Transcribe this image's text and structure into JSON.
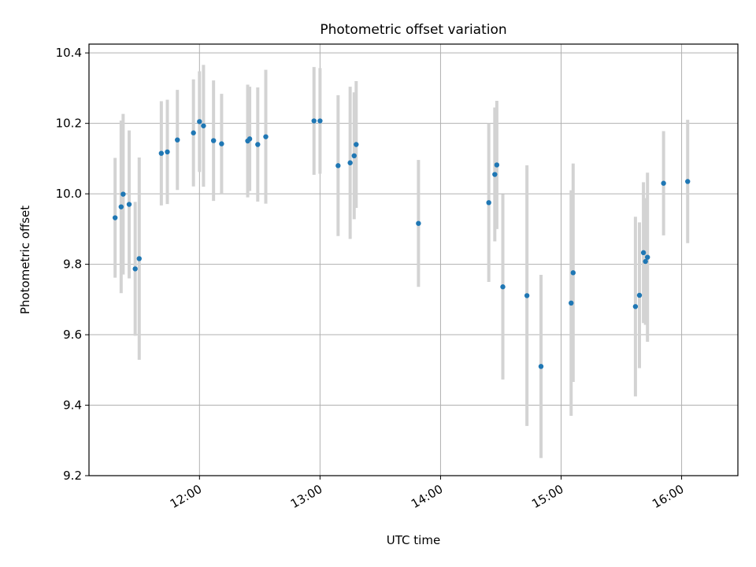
{
  "chart_data": {
    "type": "scatter",
    "title": "Photometric offset variation",
    "xlabel": "UTC time",
    "ylabel": "Photometric offset",
    "xlim": [
      "11:05",
      "16:28"
    ],
    "ylim": [
      9.2,
      10.425
    ],
    "grid": true,
    "colors": {
      "marker": "#1f77b4",
      "errorbar": "#d3d3d3",
      "grid": "#b0b0b0"
    },
    "x_ticks": [
      "12:00",
      "13:00",
      "14:00",
      "15:00",
      "16:00"
    ],
    "y_ticks": [
      "9.2",
      "9.4",
      "9.6",
      "9.8",
      "10.0",
      "10.2",
      "10.4"
    ],
    "points": [
      {
        "x": "11:18",
        "y": 9.932,
        "err": 0.17
      },
      {
        "x": "11:21",
        "y": 9.963,
        "err": 0.245
      },
      {
        "x": "11:22",
        "y": 9.999,
        "err": 0.228
      },
      {
        "x": "11:25",
        "y": 9.97,
        "err": 0.21
      },
      {
        "x": "11:28",
        "y": 9.787,
        "err": 0.19
      },
      {
        "x": "11:30",
        "y": 9.816,
        "err": 0.287
      },
      {
        "x": "11:41",
        "y": 10.115,
        "err": 0.148
      },
      {
        "x": "11:44",
        "y": 10.119,
        "err": 0.148
      },
      {
        "x": "11:49",
        "y": 10.153,
        "err": 0.142
      },
      {
        "x": "11:57",
        "y": 10.173,
        "err": 0.152
      },
      {
        "x": "12:00",
        "y": 10.205,
        "err": 0.143
      },
      {
        "x": "12:02",
        "y": 10.193,
        "err": 0.173
      },
      {
        "x": "12:07",
        "y": 10.151,
        "err": 0.171
      },
      {
        "x": "12:11",
        "y": 10.142,
        "err": 0.142
      },
      {
        "x": "12:24",
        "y": 10.15,
        "err": 0.16
      },
      {
        "x": "12:25",
        "y": 10.156,
        "err": 0.148
      },
      {
        "x": "12:29",
        "y": 10.14,
        "err": 0.162
      },
      {
        "x": "12:33",
        "y": 10.162,
        "err": 0.19
      },
      {
        "x": "12:57",
        "y": 10.207,
        "err": 0.153
      },
      {
        "x": "13:00",
        "y": 10.207,
        "err": 0.15
      },
      {
        "x": "13:09",
        "y": 10.08,
        "err": 0.2
      },
      {
        "x": "13:15",
        "y": 10.088,
        "err": 0.216
      },
      {
        "x": "13:17",
        "y": 10.108,
        "err": 0.18
      },
      {
        "x": "13:18",
        "y": 10.14,
        "err": 0.18
      },
      {
        "x": "13:49",
        "y": 9.916,
        "err": 0.18
      },
      {
        "x": "14:24",
        "y": 9.975,
        "err": 0.225
      },
      {
        "x": "14:27",
        "y": 10.055,
        "err": 0.19
      },
      {
        "x": "14:28",
        "y": 10.082,
        "err": 0.182
      },
      {
        "x": "14:31",
        "y": 9.736,
        "err": 0.263
      },
      {
        "x": "14:43",
        "y": 9.711,
        "err": 0.37
      },
      {
        "x": "14:50",
        "y": 9.51,
        "err": 0.26
      },
      {
        "x": "15:05",
        "y": 9.69,
        "err": 0.32
      },
      {
        "x": "15:06",
        "y": 9.776,
        "err": 0.31
      },
      {
        "x": "15:37",
        "y": 9.68,
        "err": 0.255
      },
      {
        "x": "15:39",
        "y": 9.712,
        "err": 0.207
      },
      {
        "x": "15:41",
        "y": 9.833,
        "err": 0.2
      },
      {
        "x": "15:42",
        "y": 9.808,
        "err": 0.18
      },
      {
        "x": "15:43",
        "y": 9.82,
        "err": 0.24
      },
      {
        "x": "15:51",
        "y": 10.03,
        "err": 0.148
      },
      {
        "x": "16:03",
        "y": 10.035,
        "err": 0.175
      }
    ]
  }
}
